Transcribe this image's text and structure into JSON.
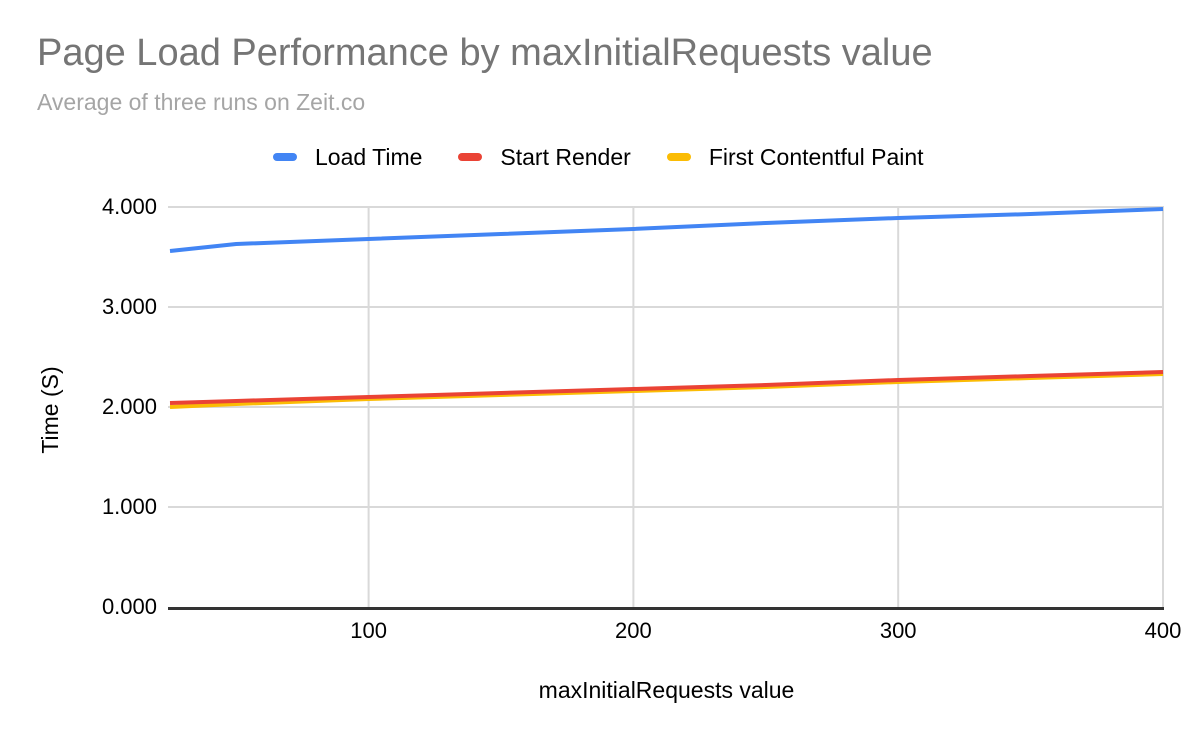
{
  "chart_data": {
    "type": "line",
    "title": "Page Load Performance by maxInitialRequests value",
    "subtitle": "Average of three runs on Zeit.co",
    "xlabel": "maxInitialRequests value",
    "ylabel": "Time (S)",
    "legend_position": "top",
    "grid": true,
    "x": [
      25,
      50,
      100,
      150,
      200,
      250,
      300,
      350,
      400
    ],
    "xlim": [
      25,
      400
    ],
    "ylim": [
      0,
      4
    ],
    "x_ticks": [
      {
        "value": 100,
        "label": "100"
      },
      {
        "value": 200,
        "label": "200"
      },
      {
        "value": 300,
        "label": "300"
      },
      {
        "value": 400,
        "label": "400"
      }
    ],
    "y_ticks": [
      {
        "value": 0,
        "label": "0.000"
      },
      {
        "value": 1,
        "label": "1.000"
      },
      {
        "value": 2,
        "label": "2.000"
      },
      {
        "value": 3,
        "label": "3.000"
      },
      {
        "value": 4,
        "label": "4.000"
      }
    ],
    "series": [
      {
        "name": "Load Time",
        "color": "#4285F4",
        "values": [
          3.56,
          3.63,
          3.68,
          3.73,
          3.78,
          3.84,
          3.89,
          3.93,
          3.98
        ]
      },
      {
        "name": "Start Render",
        "color": "#EA4335",
        "values": [
          2.04,
          2.06,
          2.1,
          2.14,
          2.18,
          2.22,
          2.27,
          2.31,
          2.35
        ]
      },
      {
        "name": "First Contentful Paint",
        "color": "#FBBC04",
        "values": [
          2.0,
          2.03,
          2.08,
          2.12,
          2.16,
          2.2,
          2.25,
          2.29,
          2.33
        ]
      }
    ],
    "colors": {
      "grid": "#d9d9d9",
      "axis_line": "#333333",
      "tick_text": "#000000",
      "title": "#757575",
      "subtitle": "#a5a5a5"
    }
  }
}
